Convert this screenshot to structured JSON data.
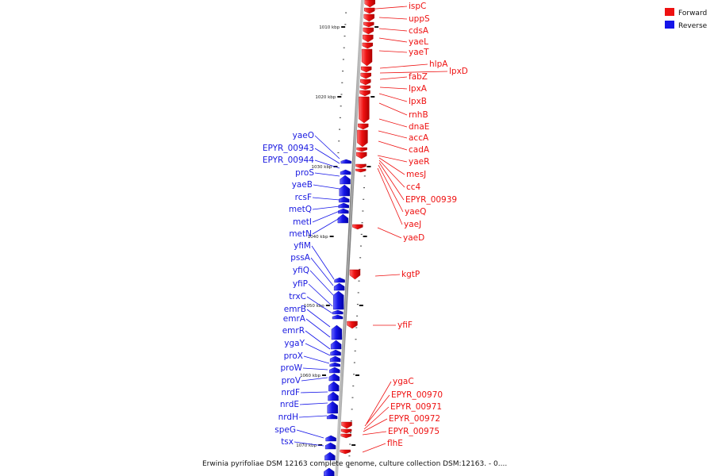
{
  "caption": "Erwinia pyrifoliae DSM 12163 complete genome, culture collection DSM:12163. - 0....",
  "legend": [
    {
      "label": "Forward",
      "color": "#ee1111"
    },
    {
      "label": "Reverse",
      "color": "#1515e8"
    }
  ],
  "kbp_labels": [
    "1010 kbp",
    "1020 kbp",
    "1030 kbp",
    "1040 kbp",
    "1050 kbp",
    "1060 kbp",
    "1070 kbp"
  ],
  "forward_genes": [
    "ispC",
    "uppS",
    "cdsA",
    "yaeL",
    "yaeT",
    "hlpA",
    "lpxD",
    "fabZ",
    "lpxA",
    "lpxB",
    "rnhB",
    "dnaE",
    "accA",
    "cadA",
    "yaeR",
    "mesJ",
    "cc4",
    "EPYR_00939",
    "yaeQ",
    "yaeJ",
    "yaeD",
    "kgtP",
    "yfiF",
    "ygaC",
    "EPYR_00970",
    "EPYR_00971",
    "EPYR_00972",
    "EPYR_00975",
    "flhE"
  ],
  "reverse_genes": [
    "yaeO",
    "EPYR_00943",
    "EPYR_00944",
    "proS",
    "yaeB",
    "rcsF",
    "metQ",
    "metI",
    "metN",
    "yfiM",
    "pssA",
    "yfiQ",
    "yfiP",
    "trxC",
    "emrB",
    "emrA",
    "emrR",
    "ygaY",
    "proX",
    "proW",
    "proV",
    "nrdF",
    "nrdE",
    "nrdH",
    "speG",
    "tsx"
  ]
}
